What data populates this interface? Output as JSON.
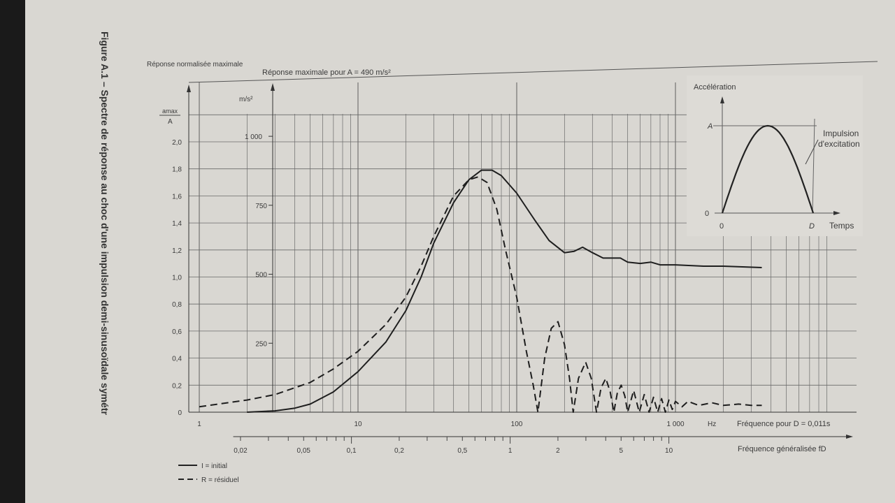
{
  "figure_title": "Figure A.1 – Spectre de réponse au choc d'une impulsion demi-sinusoïdale symétr",
  "chart_data": {
    "type": "line",
    "x_scale": "log",
    "xlabel": "Fréquence pour D = 0,011s",
    "x_unit": "Hz",
    "xlim": [
      1,
      4000
    ],
    "x_ticks": [
      {
        "v": 1,
        "label": "1"
      },
      {
        "v": 10,
        "label": "10"
      },
      {
        "v": 100,
        "label": "100"
      },
      {
        "v": 1000,
        "label": "1 000"
      }
    ],
    "x_unit_label": "Hz",
    "x2label": "Fréquence généralisée fD",
    "x2_ticks": [
      {
        "v": 0.02,
        "label": "0,02"
      },
      {
        "v": 0.05,
        "label": "0,05"
      },
      {
        "v": 0.1,
        "label": "0,1"
      },
      {
        "v": 0.2,
        "label": "0,2"
      },
      {
        "v": 0.5,
        "label": "0,5"
      },
      {
        "v": 1,
        "label": "1"
      },
      {
        "v": 2,
        "label": "2"
      },
      {
        "v": 5,
        "label": "5"
      },
      {
        "v": 10,
        "label": "10"
      }
    ],
    "ylabel_left_title": "Réponse normalisée maximale",
    "ylabel_left": "a_max / A",
    "ylabel_left_num": "amax",
    "ylabel_left_den": "A",
    "ylim": [
      0,
      2.2
    ],
    "y_ticks": [
      {
        "v": 0,
        "label": "0"
      },
      {
        "v": 0.2,
        "label": "0,2"
      },
      {
        "v": 0.4,
        "label": "0,4"
      },
      {
        "v": 0.6,
        "label": "0,6"
      },
      {
        "v": 0.8,
        "label": "0,8"
      },
      {
        "v": 1.0,
        "label": "1,0"
      },
      {
        "v": 1.2,
        "label": "1,2"
      },
      {
        "v": 1.4,
        "label": "1,4"
      },
      {
        "v": 1.6,
        "label": "1,6"
      },
      {
        "v": 1.8,
        "label": "1,8"
      },
      {
        "v": 2.0,
        "label": "2,0"
      }
    ],
    "ylabel_right_title": "Réponse maximale pour A = 490 m/s²",
    "y2_unit": "m/s²",
    "y2_ticks": [
      {
        "v": 250,
        "label": "250"
      },
      {
        "v": 500,
        "label": "500"
      },
      {
        "v": 750,
        "label": "750"
      },
      {
        "v": 1000,
        "label": "1 000"
      }
    ],
    "grid": true,
    "legend_placement": "bottom-left",
    "series": [
      {
        "name": "I = initial",
        "style": "solid",
        "points": [
          [
            2,
            0
          ],
          [
            3,
            0.01
          ],
          [
            4,
            0.03
          ],
          [
            5,
            0.06
          ],
          [
            7,
            0.15
          ],
          [
            10,
            0.3
          ],
          [
            15,
            0.52
          ],
          [
            20,
            0.75
          ],
          [
            25,
            1.0
          ],
          [
            30,
            1.25
          ],
          [
            40,
            1.55
          ],
          [
            50,
            1.72
          ],
          [
            60,
            1.79
          ],
          [
            70,
            1.79
          ],
          [
            80,
            1.75
          ],
          [
            100,
            1.62
          ],
          [
            130,
            1.42
          ],
          [
            160,
            1.27
          ],
          [
            200,
            1.18
          ],
          [
            230,
            1.19
          ],
          [
            260,
            1.22
          ],
          [
            300,
            1.18
          ],
          [
            350,
            1.14
          ],
          [
            400,
            1.14
          ],
          [
            450,
            1.14
          ],
          [
            500,
            1.11
          ],
          [
            600,
            1.1
          ],
          [
            700,
            1.11
          ],
          [
            800,
            1.09
          ],
          [
            1000,
            1.09
          ],
          [
            1500,
            1.08
          ],
          [
            2000,
            1.08
          ],
          [
            3500,
            1.07
          ]
        ]
      },
      {
        "name": "R = résiduel",
        "style": "dashed",
        "points": [
          [
            1,
            0.04
          ],
          [
            2,
            0.09
          ],
          [
            3,
            0.13
          ],
          [
            5,
            0.22
          ],
          [
            7,
            0.32
          ],
          [
            10,
            0.45
          ],
          [
            15,
            0.65
          ],
          [
            20,
            0.85
          ],
          [
            25,
            1.08
          ],
          [
            30,
            1.3
          ],
          [
            40,
            1.6
          ],
          [
            50,
            1.72
          ],
          [
            57,
            1.74
          ],
          [
            65,
            1.7
          ],
          [
            75,
            1.5
          ],
          [
            85,
            1.2
          ],
          [
            100,
            0.85
          ],
          [
            115,
            0.45
          ],
          [
            127,
            0.2
          ],
          [
            136,
            0
          ],
          [
            150,
            0.4
          ],
          [
            165,
            0.62
          ],
          [
            182,
            0.67
          ],
          [
            200,
            0.5
          ],
          [
            215,
            0.25
          ],
          [
            227,
            0
          ],
          [
            245,
            0.25
          ],
          [
            272,
            0.37
          ],
          [
            295,
            0.25
          ],
          [
            318,
            0
          ],
          [
            340,
            0.18
          ],
          [
            364,
            0.25
          ],
          [
            388,
            0.15
          ],
          [
            409,
            0
          ],
          [
            430,
            0.14
          ],
          [
            455,
            0.2
          ],
          [
            480,
            0.12
          ],
          [
            500,
            0
          ],
          [
            545,
            0.16
          ],
          [
            591,
            0
          ],
          [
            636,
            0.13
          ],
          [
            682,
            0
          ],
          [
            727,
            0.11
          ],
          [
            773,
            0
          ],
          [
            818,
            0.1
          ],
          [
            864,
            0
          ],
          [
            909,
            0.09
          ],
          [
            955,
            0.02
          ],
          [
            1000,
            0.08
          ],
          [
            1100,
            0.04
          ],
          [
            1200,
            0.08
          ],
          [
            1400,
            0.05
          ],
          [
            1700,
            0.07
          ],
          [
            2000,
            0.05
          ],
          [
            2500,
            0.06
          ],
          [
            3000,
            0.05
          ],
          [
            3500,
            0.05
          ]
        ]
      }
    ],
    "inset": {
      "ylabel": "Accélération",
      "xlabel": "Temps",
      "y_peak_label": "A",
      "y_zero_label": "0",
      "x_zero_label": "0",
      "x_end_label": "D",
      "annotation_line1": "Impulsion",
      "annotation_line2": "d'excitation"
    }
  }
}
